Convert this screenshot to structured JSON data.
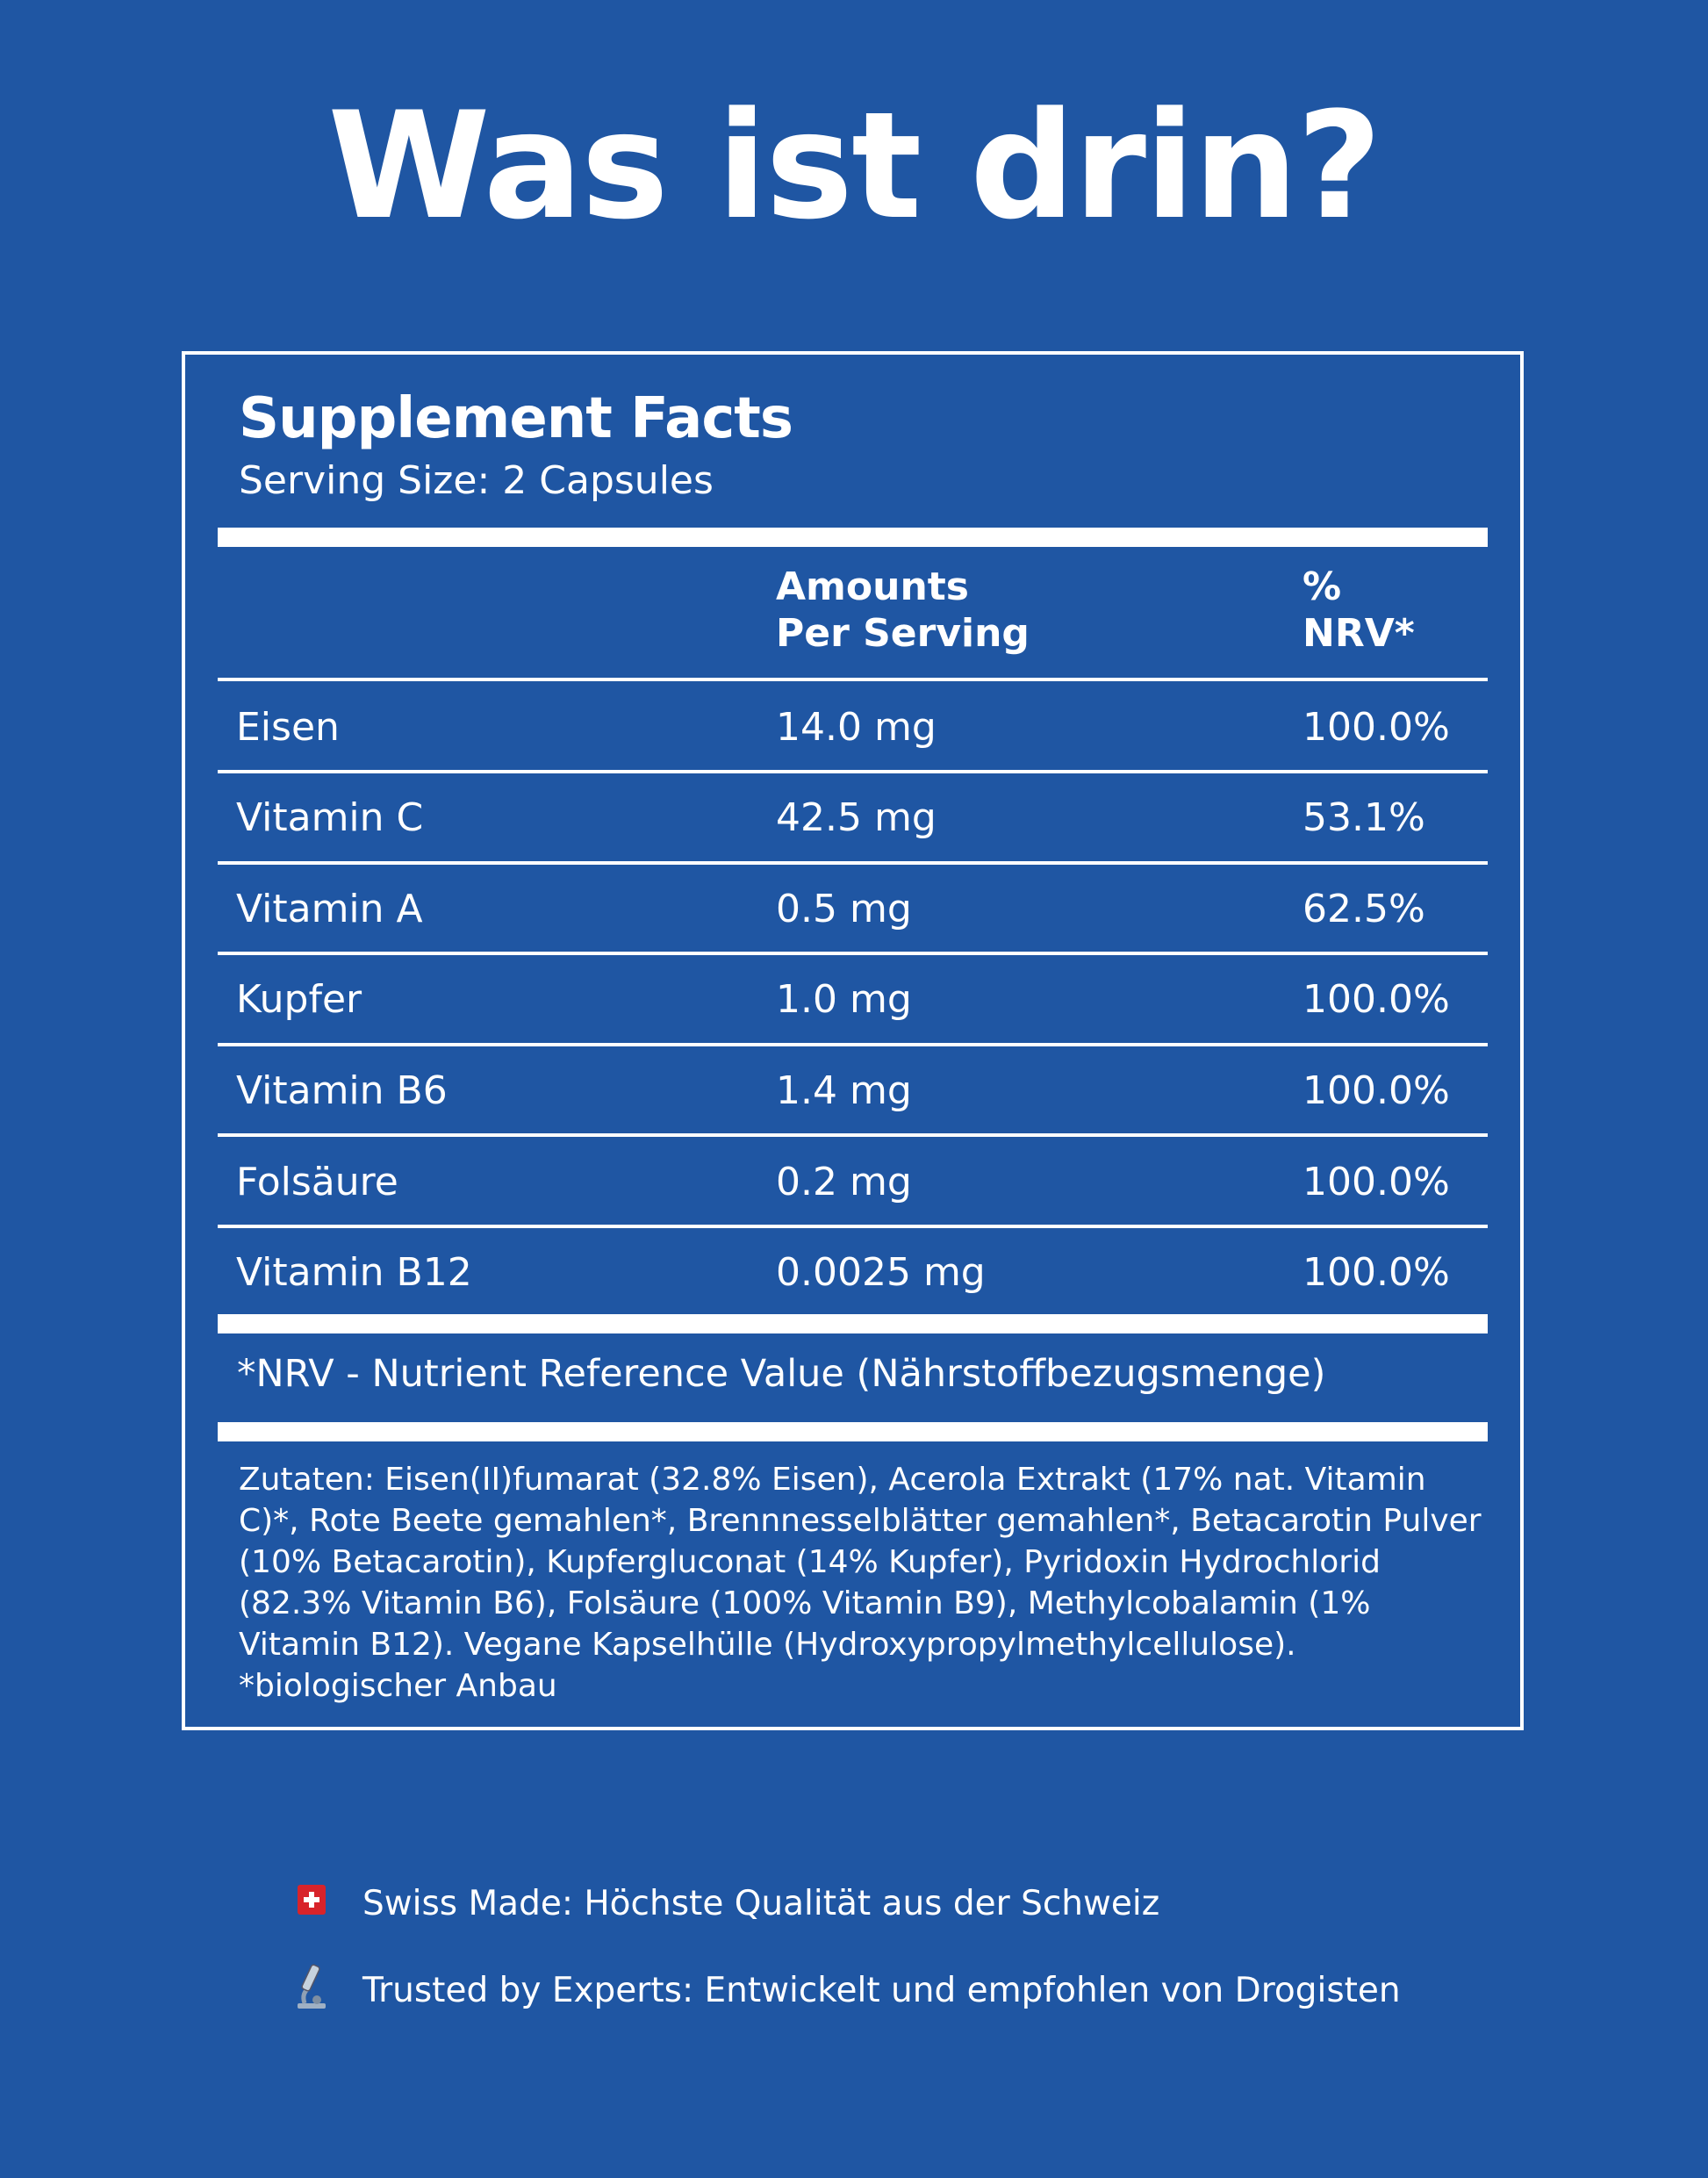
{
  "title": "Was ist drin?",
  "facts": {
    "heading": "Supplement Facts",
    "serving_size": "Serving Size: 2 Capsules",
    "col_amount_1": "Amounts",
    "col_amount_2": "Per Serving",
    "col_nrv_1": "%",
    "col_nrv_2": "NRV*",
    "rows": [
      {
        "name": "Eisen",
        "amount": "14.0 mg",
        "nrv": "100.0%"
      },
      {
        "name": "Vitamin C",
        "amount": "42.5 mg",
        "nrv": "53.1%"
      },
      {
        "name": "Vitamin A",
        "amount": "0.5 mg",
        "nrv": "62.5%"
      },
      {
        "name": "Kupfer",
        "amount": "1.0 mg",
        "nrv": "100.0%"
      },
      {
        "name": "Vitamin B6",
        "amount": "1.4 mg",
        "nrv": "100.0%"
      },
      {
        "name": "Folsäure",
        "amount": "0.2 mg",
        "nrv": "100.0%"
      },
      {
        "name": "Vitamin B12",
        "amount": "0.0025 mg",
        "nrv": "100.0%"
      }
    ],
    "footnote": "*NRV - Nutrient Reference Value (Nährstoffbezugsmenge)",
    "ingredients": "Zutaten: Eisen(II)fumarat (32.8% Eisen), Acerola Extrakt (17% nat. Vitamin C)*, Rote Beete gemahlen*, Brennnesselblätter gemahlen*, Betacarotin Pulver (10% Betacarotin), Kupfergluconat (14% Kupfer), Pyridoxin Hydrochlorid (82.3% Vitamin B6), Folsäure (100% Vitamin B9), Methylcobalamin (1% Vitamin B12). Vegane Kapselhülle (Hydroxypropylmethylcellulose).",
    "organic_note": "*biologischer Anbau"
  },
  "features": [
    {
      "icon": "swiss-flag-icon",
      "text": "Swiss Made: Höchste Qualität aus der Schweiz"
    },
    {
      "icon": "microscope-icon",
      "text": "Trusted by Experts: Entwickelt und empfohlen von Drogisten"
    }
  ]
}
